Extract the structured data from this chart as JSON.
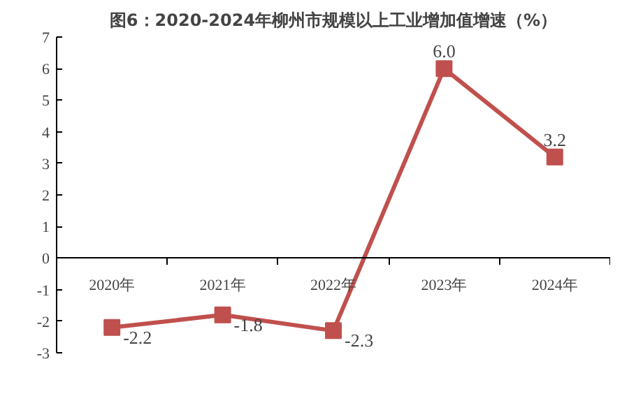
{
  "chart_data": {
    "type": "line",
    "title": "图6：2020-2024年柳州市规模以上工业增加值增速（%）",
    "categories": [
      "2020年",
      "2021年",
      "2022年",
      "2023年",
      "2024年"
    ],
    "series": [
      {
        "color": "#c0504d",
        "values": [
          -2.2,
          -1.8,
          -2.3,
          6.0,
          3.2
        ]
      }
    ],
    "value_labels": [
      "-2.2",
      "-1.8",
      "-2.3",
      "6.0",
      "3.2"
    ],
    "ylim": [
      -3,
      7
    ],
    "yticks": [
      -3,
      -2,
      -1,
      0,
      1,
      2,
      3,
      4,
      5,
      6,
      7
    ],
    "marker": "square",
    "grid": false
  }
}
